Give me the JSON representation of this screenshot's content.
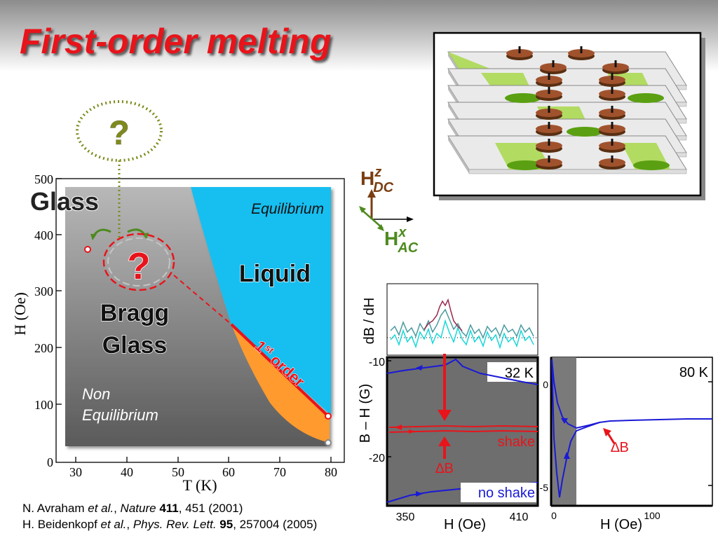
{
  "slide": {
    "title": "First-order melting"
  },
  "phase_diagram": {
    "y_ticks": [
      "500",
      "400",
      "300",
      "200",
      "100",
      "0"
    ],
    "x_ticks": [
      "30",
      "40",
      "50",
      "60",
      "70",
      "80"
    ],
    "y_label": "H (Oe)",
    "x_label": "T (K)",
    "labels": {
      "glass": "Glass",
      "glass_question": "?",
      "bragg_question": "?",
      "bragg_glass_line1": "Bragg",
      "bragg_glass_line2": "Glass",
      "non_eq_line1": "Non",
      "non_eq_line2": "Equilibrium",
      "equilibrium": "Equilibrium",
      "liquid": "Liquid",
      "first_order_num": "1",
      "first_order_sup": "st",
      "first_order_word": "order"
    },
    "colors": {
      "liquid": "#14bff0",
      "melting_line": "#e8141b",
      "supercooled": "#ff9a2e",
      "glass_gradient_top": "#b3b3b3",
      "glass_gradient_bottom": "#5e5e5e"
    }
  },
  "field_axes": {
    "h_dc_main": "H",
    "h_dc_sup": "z",
    "h_dc_sub": "DC",
    "h_ac_main": "H",
    "h_ac_sup": "x",
    "h_ac_sub": "AC"
  },
  "derivative_plot": {
    "y_label": "dB / dH"
  },
  "plot_32k": {
    "temperature": "32 K",
    "y_label": "B – H (G)",
    "y_ticks": [
      "-10",
      "-20"
    ],
    "x_ticks": [
      "350",
      "410"
    ],
    "x_label": "H (Oe)",
    "shake_label": "shake",
    "delta_b_label": "∆B",
    "no_shake_label": "no shake"
  },
  "plot_80k": {
    "temperature": "80 K",
    "y_ticks": [
      "0",
      "-5"
    ],
    "x_ticks": [
      "0",
      "100"
    ],
    "x_label": "H (Oe)",
    "delta_b_label": "∆B"
  },
  "references": [
    {
      "authors": "N. Avraham ",
      "etal": "et al.",
      "sep": ", ",
      "journal": "Nature",
      "volume": "411",
      "pages": ", 451 (2001)"
    },
    {
      "authors": "H. Beidenkopf ",
      "etal": "et al.",
      "sep": ", ",
      "journal": "Phys. Rev. Lett.",
      "volume": "95",
      "pages": ", 257004 (2005)"
    }
  ]
}
